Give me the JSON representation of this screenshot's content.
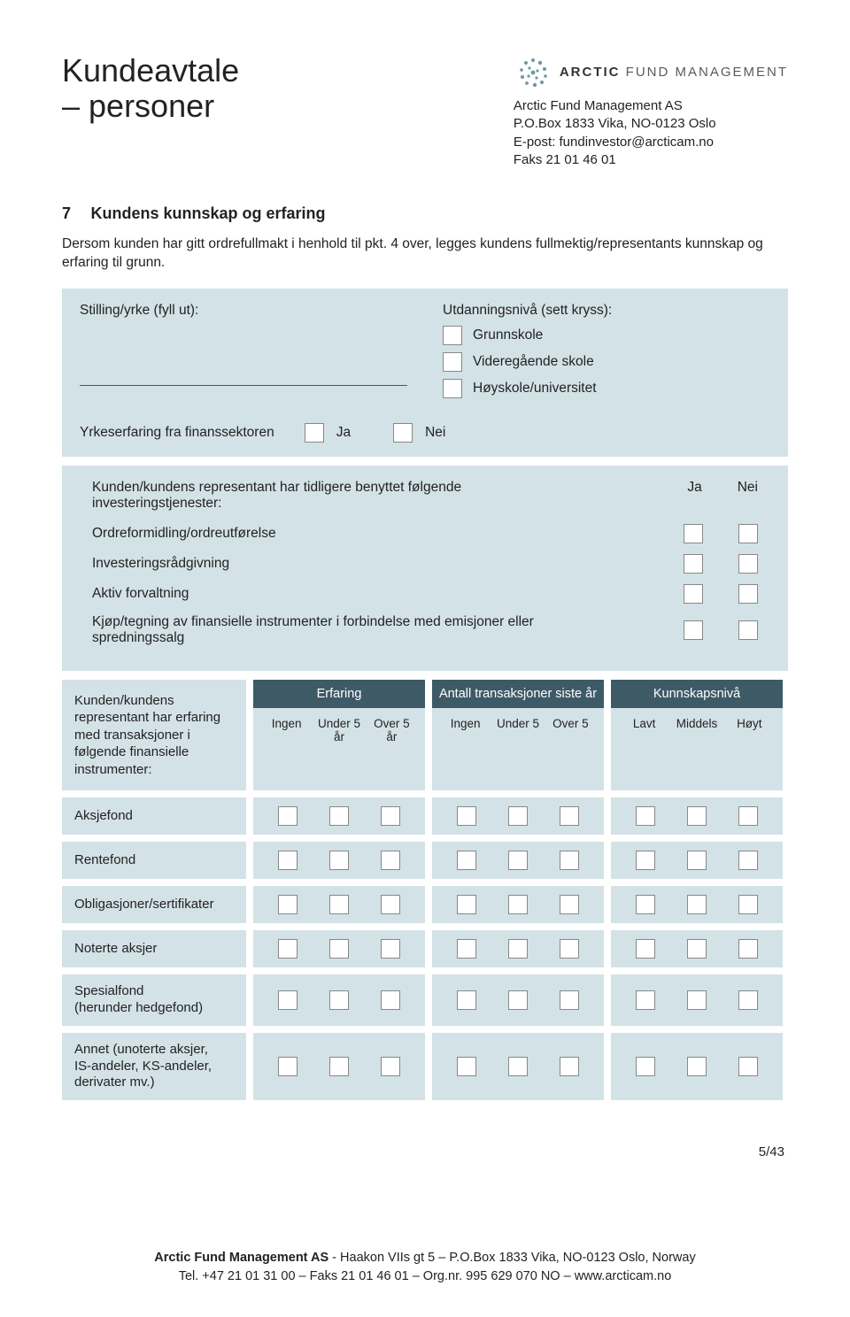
{
  "colors": {
    "panel_bg": "#d3e2e6",
    "header_dark": "#3e5a66",
    "text": "#222222",
    "checkbox_bg": "#ffffff",
    "checkbox_border": "#888888"
  },
  "header": {
    "title_line1": "Kundeavtale",
    "title_line2": "– personer",
    "brand_bold": "ARCTIC",
    "brand_rest": " FUND MANAGEMENT",
    "company": "Arctic Fund Management AS",
    "pobox": "P.O.Box 1833 Vika, NO-0123 Oslo",
    "email": "E-post: fundinvestor@arcticam.no",
    "fax": "Faks 21 01 46 01"
  },
  "section": {
    "num": "7",
    "title": "Kundens kunnskap og erfaring"
  },
  "intro": "Dersom kunden har gitt ordrefullmakt i henhold til pkt. 4 over, legges kundens fullmektig/representants kunnskap og erfaring til grunn.",
  "panel1": {
    "stilling_label": "Stilling/yrke (fyll ut):",
    "utd_label": "Utdanningsnivå (sett kryss):",
    "edu": [
      "Grunnskole",
      "Videregående skole",
      "Høyskole/universitet"
    ],
    "yrke_label": "Yrkeserfaring fra finanssektoren",
    "ja": "Ja",
    "nei": "Nei"
  },
  "panel2": {
    "head": "Kunden/kundens representant har tidligere benyttet følgende investeringstjenester:",
    "ja": "Ja",
    "nei": "Nei",
    "rows": [
      "Ordreformidling/ordreutførelse",
      "Investeringsrådgivning",
      "Aktiv forvaltning",
      "Kjøp/tegning av finansielle instrumenter i forbindelse med emisjoner eller spredningssalg"
    ]
  },
  "matrix": {
    "side_label": "Kunden/kundens representant har erfaring med transaksjoner i følgende finansielle instrumenter:",
    "groups": [
      {
        "title": "Erfaring",
        "cols": [
          "Ingen",
          "Under 5 år",
          "Over 5 år"
        ]
      },
      {
        "title": "Antall transaksjoner siste år",
        "cols": [
          "Ingen",
          "Under 5",
          "Over 5"
        ]
      },
      {
        "title": "Kunnskapsnivå",
        "cols": [
          "Lavt",
          "Middels",
          "Høyt"
        ]
      }
    ],
    "rows": [
      "Aksjefond",
      "Rentefond",
      "Obligasjoner/sertifikater",
      "Noterte aksjer",
      "Spesialfond\n(herunder hedgefond)",
      "Annet (unoterte aksjer,\nIS-andeler, KS-andeler,\nderivater mv.)"
    ]
  },
  "page_num": "5/43",
  "footer": {
    "line1_bold": "Arctic Fund Management AS",
    "line1_rest": " - Haakon VIIs gt 5 – P.O.Box 1833 Vika, NO-0123 Oslo, Norway",
    "line2": "Tel. +47 21 01 31 00 – Faks 21 01 46 01 – Org.nr. 995 629 070 NO – www.arcticam.no"
  }
}
